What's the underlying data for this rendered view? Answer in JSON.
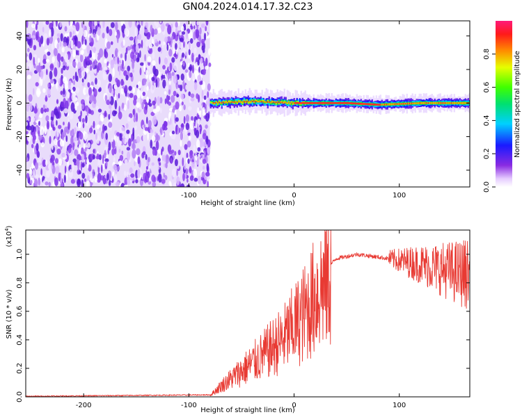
{
  "title": "GN04.2024.014.17.32.C23",
  "colors": {
    "snr_line": "#e83a33",
    "spectrogram_noise": "#7a2fe6",
    "spectrogram_signal": "#00c040",
    "spectrogram_peak": "#ff2a2a",
    "axis": "#000000",
    "background": "#ffffff"
  },
  "chart_data": [
    {
      "type": "heatmap",
      "xlabel": "Height of straight line (km)",
      "ylabel": "Frequency (Hz)",
      "xlim": [
        -255,
        167
      ],
      "ylim": [
        -50,
        49
      ],
      "xticks": [
        -200,
        -100,
        0,
        100
      ],
      "yticks": [
        -40,
        -20,
        0,
        20,
        40
      ],
      "noise_region_x": [
        -255,
        -80
      ],
      "signal_region_x": [
        -80,
        167
      ],
      "signal_center_freq": [
        {
          "x": -80,
          "y": 0
        },
        {
          "x": -40,
          "y": 1
        },
        {
          "x": 0,
          "y": 0
        },
        {
          "x": 50,
          "y": 0
        },
        {
          "x": 80,
          "y": -1
        },
        {
          "x": 120,
          "y": 0
        },
        {
          "x": 167,
          "y": 0
        }
      ],
      "colorbar": {
        "label": "Normalized spectral amplitude",
        "range": [
          0,
          1
        ],
        "ticks": [
          0.0,
          0.2,
          0.4,
          0.6,
          0.8
        ]
      }
    },
    {
      "type": "line",
      "xlabel": "Height of straight line (km)",
      "ylabel": "SNR (10 * v/v)",
      "scale_note": "(x10",
      "scale_exp": "4",
      "xlim": [
        -255,
        167
      ],
      "ylim": [
        0,
        1.17
      ],
      "xticks": [
        -200,
        -100,
        0,
        100
      ],
      "yticks": [
        0.0,
        0.2,
        0.4,
        0.6,
        0.8,
        1.0
      ],
      "series": [
        {
          "envelope": [
            {
              "x": -255,
              "y": 0.0
            },
            {
              "x": -80,
              "y": 0.01
            },
            {
              "x": -70,
              "y": 0.08
            },
            {
              "x": -50,
              "y": 0.2
            },
            {
              "x": -30,
              "y": 0.32
            },
            {
              "x": -10,
              "y": 0.45
            },
            {
              "x": 10,
              "y": 0.65
            },
            {
              "x": 25,
              "y": 0.85
            },
            {
              "x": 40,
              "y": 0.97
            },
            {
              "x": 60,
              "y": 1.0
            },
            {
              "x": 90,
              "y": 0.97
            },
            {
              "x": 120,
              "y": 0.93
            },
            {
              "x": 150,
              "y": 0.88
            },
            {
              "x": 167,
              "y": 0.86
            }
          ]
        }
      ]
    }
  ]
}
